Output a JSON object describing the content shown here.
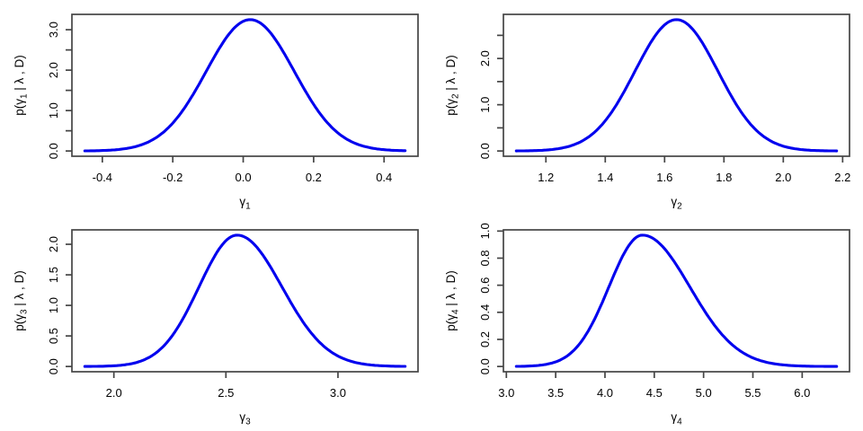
{
  "figure": {
    "background": "#ffffff",
    "curve_color": "#0000ee",
    "axis_color": "#454545",
    "text_color": "#000000",
    "grid": "off",
    "layout": "2x2 panel grid of posterior density curves"
  },
  "chart_data": [
    {
      "type": "line",
      "name": "posterior-density-gamma1",
      "position": "top-left",
      "xlabel": {
        "pre": "γ",
        "sub": "1",
        "post": ""
      },
      "ylabel": {
        "pre": "p(γ",
        "sub": "1",
        "post": " | λ , D)"
      },
      "x_range": [
        -0.45,
        0.46
      ],
      "ylim": [
        0,
        3.25
      ],
      "x_ticks": [
        {
          "v": -0.4,
          "label": "-0.4"
        },
        {
          "v": -0.2,
          "label": "-0.2"
        },
        {
          "v": 0.0,
          "label": "0.0"
        },
        {
          "v": 0.2,
          "label": "0.2"
        },
        {
          "v": 0.4,
          "label": "0.4"
        }
      ],
      "y_ticks": [
        {
          "v": 0.0,
          "label": "0.0"
        },
        {
          "v": 0.5,
          "label": ""
        },
        {
          "v": 1.0,
          "label": "1.0"
        },
        {
          "v": 1.5,
          "label": ""
        },
        {
          "v": 2.0,
          "label": "2.0"
        },
        {
          "v": 2.5,
          "label": ""
        },
        {
          "v": 3.0,
          "label": "3.0"
        }
      ],
      "curve": {
        "shape": "bell",
        "mode": 0.02,
        "peak": 3.25,
        "sigma_left": 0.125,
        "sigma_right": 0.125,
        "x_start": -0.45,
        "x_end": 0.46
      }
    },
    {
      "type": "line",
      "name": "posterior-density-gamma2",
      "position": "top-right",
      "xlabel": {
        "pre": "γ",
        "sub": "2",
        "post": ""
      },
      "ylabel": {
        "pre": "p(γ",
        "sub": "2",
        "post": " | λ , D)"
      },
      "x_range": [
        1.1,
        2.18
      ],
      "ylim": [
        0,
        2.84
      ],
      "x_ticks": [
        {
          "v": 1.2,
          "label": "1.2"
        },
        {
          "v": 1.4,
          "label": "1.4"
        },
        {
          "v": 1.6,
          "label": "1.6"
        },
        {
          "v": 1.8,
          "label": "1.8"
        },
        {
          "v": 2.0,
          "label": "2.0"
        },
        {
          "v": 2.2,
          "label": "2.2"
        }
      ],
      "y_ticks": [
        {
          "v": 0.0,
          "label": "0.0"
        },
        {
          "v": 0.5,
          "label": ""
        },
        {
          "v": 1.0,
          "label": "1.0"
        },
        {
          "v": 1.5,
          "label": ""
        },
        {
          "v": 2.0,
          "label": "2.0"
        },
        {
          "v": 2.5,
          "label": ""
        }
      ],
      "curve": {
        "shape": "bell",
        "mode": 1.64,
        "peak": 2.84,
        "sigma_left": 0.14,
        "sigma_right": 0.14,
        "x_start": 1.1,
        "x_end": 2.18
      }
    },
    {
      "type": "line",
      "name": "posterior-density-gamma3",
      "position": "bottom-left",
      "xlabel": {
        "pre": "γ",
        "sub": "3",
        "post": ""
      },
      "ylabel": {
        "pre": "p(γ",
        "sub": "3",
        "post": " | λ , D)"
      },
      "x_range": [
        1.87,
        3.3
      ],
      "ylim": [
        0,
        2.15
      ],
      "x_ticks": [
        {
          "v": 2.0,
          "label": "2.0"
        },
        {
          "v": 2.5,
          "label": "2.5"
        },
        {
          "v": 3.0,
          "label": "3.0"
        }
      ],
      "y_ticks": [
        {
          "v": 0.0,
          "label": "0.0"
        },
        {
          "v": 0.5,
          "label": "0.5"
        },
        {
          "v": 1.0,
          "label": "1.0"
        },
        {
          "v": 1.5,
          "label": "1.5"
        },
        {
          "v": 2.0,
          "label": "2.0"
        }
      ],
      "curve": {
        "shape": "bell",
        "mode": 2.55,
        "peak": 2.15,
        "sigma_left": 0.17,
        "sigma_right": 0.2,
        "x_start": 1.87,
        "x_end": 3.3
      }
    },
    {
      "type": "line",
      "name": "posterior-density-gamma4",
      "position": "bottom-right",
      "xlabel": {
        "pre": "γ",
        "sub": "4",
        "post": ""
      },
      "ylabel": {
        "pre": "p(γ",
        "sub": "4",
        "post": " | λ , D)"
      },
      "x_range": [
        3.1,
        6.35
      ],
      "ylim": [
        0,
        0.97
      ],
      "x_ticks": [
        {
          "v": 3.0,
          "label": "3.0"
        },
        {
          "v": 3.5,
          "label": "3.5"
        },
        {
          "v": 4.0,
          "label": "4.0"
        },
        {
          "v": 4.5,
          "label": "4.5"
        },
        {
          "v": 5.0,
          "label": "5.0"
        },
        {
          "v": 5.5,
          "label": "5.5"
        },
        {
          "v": 6.0,
          "label": "6.0"
        }
      ],
      "y_ticks": [
        {
          "v": 0.0,
          "label": "0.0"
        },
        {
          "v": 0.2,
          "label": "0.2"
        },
        {
          "v": 0.4,
          "label": "0.4"
        },
        {
          "v": 0.6,
          "label": "0.6"
        },
        {
          "v": 0.8,
          "label": "0.8"
        },
        {
          "v": 1.0,
          "label": "1.0"
        }
      ],
      "curve": {
        "shape": "bell",
        "mode": 4.38,
        "peak": 0.97,
        "sigma_left": 0.34,
        "sigma_right": 0.48,
        "x_start": 3.1,
        "x_end": 6.35
      }
    }
  ]
}
